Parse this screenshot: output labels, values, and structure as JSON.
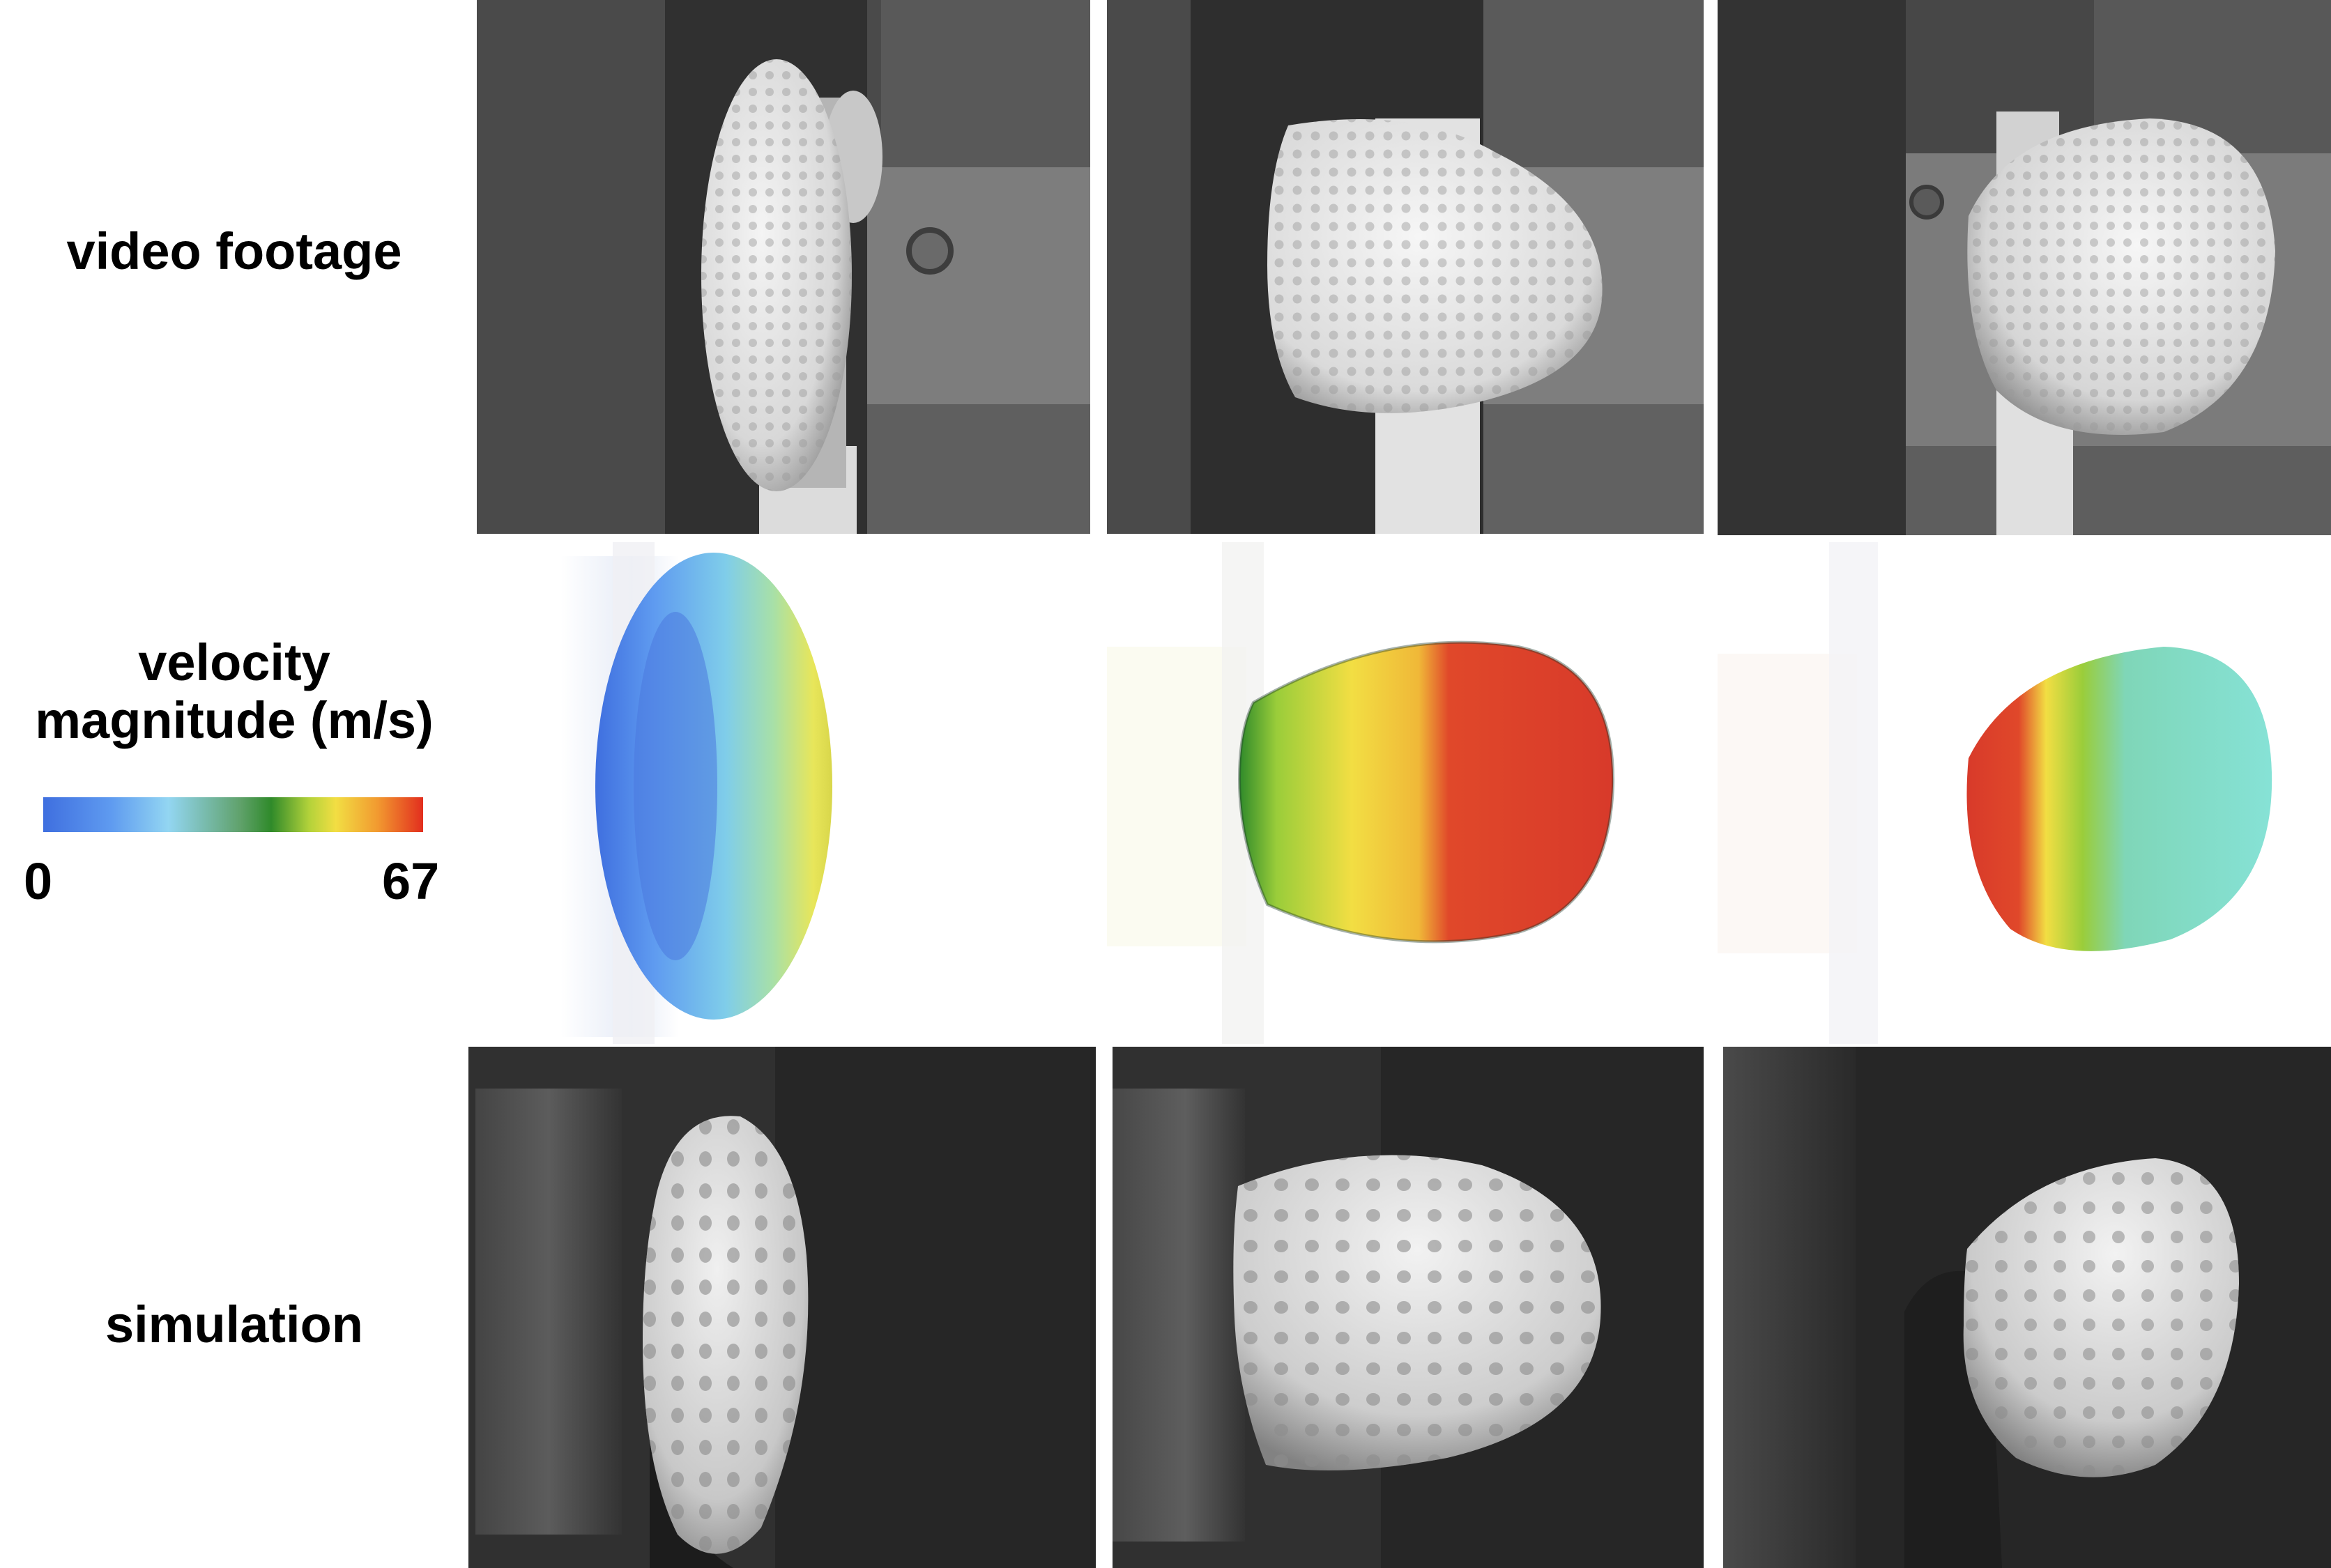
{
  "labels": {
    "video": "video footage",
    "velocity_line1": "velocity",
    "velocity_line2": "magnitude (m/s)",
    "simulation": "simulation"
  },
  "colorbar": {
    "min": "0",
    "max": "67",
    "colors": [
      "#3f6fdf",
      "#93d6f2",
      "#2f8a2a",
      "#f2de43",
      "#e22e1e"
    ]
  },
  "icons": {
    "video_frames": "golf-ball-photo",
    "velocity_frames": "velocity-field-render",
    "simulation_frames": "golf-ball-render"
  }
}
